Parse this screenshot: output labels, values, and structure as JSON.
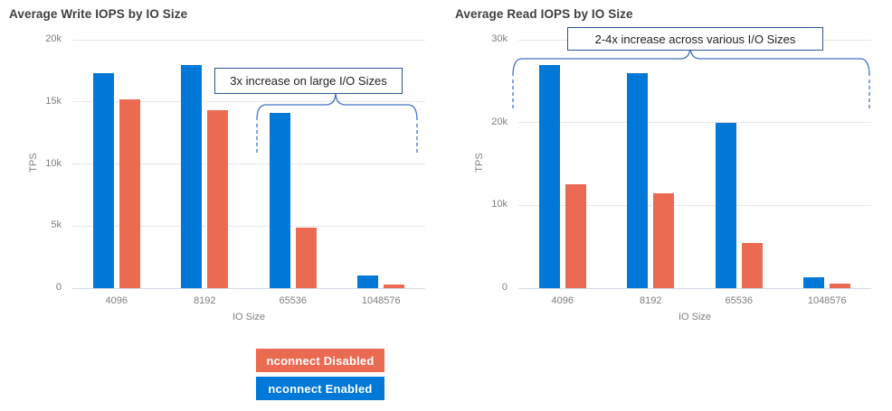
{
  "colors": {
    "enabled_blue": "#0078D7",
    "disabled_orange": "#EB6A52",
    "annotation_border": "#2F5496",
    "brace_blue": "#4472C4",
    "title_text": "#3F3F3F",
    "axis_text": "#7F7F7F",
    "gridline": "#E8E8E8",
    "axis_line": "#D3DCE9"
  },
  "legend": {
    "disabled_label": "nconnect Disabled",
    "enabled_label": "nconnect Enabled"
  },
  "chart_data": [
    {
      "type": "bar",
      "title": "Average Write IOPS by IO Size",
      "xlabel": "IO Size",
      "ylabel": "TPS",
      "categories": [
        "4096",
        "8192",
        "65536",
        "1048576"
      ],
      "series": [
        {
          "name": "nconnect Enabled",
          "color_key": "enabled_blue",
          "values": [
            17300,
            18000,
            14100,
            1000
          ]
        },
        {
          "name": "nconnect Disabled",
          "color_key": "disabled_orange",
          "values": [
            15200,
            14300,
            4900,
            300
          ]
        }
      ],
      "ylim": [
        0,
        20000
      ],
      "yticks": [
        {
          "v": 0,
          "label": "0"
        },
        {
          "v": 5000,
          "label": "5k"
        },
        {
          "v": 10000,
          "label": "10k"
        },
        {
          "v": 15000,
          "label": "15k"
        },
        {
          "v": 20000,
          "label": "20k"
        }
      ],
      "grid": "horizontal",
      "legend_position": "below-left-chart",
      "annotation": "3x increase on large I/O Sizes"
    },
    {
      "type": "bar",
      "title": "Average Read IOPS by IO Size",
      "xlabel": "IO Size",
      "ylabel": "TPS",
      "categories": [
        "4096",
        "8192",
        "65536",
        "1048576"
      ],
      "series": [
        {
          "name": "nconnect Enabled",
          "color_key": "enabled_blue",
          "values": [
            27000,
            26000,
            20000,
            1300
          ]
        },
        {
          "name": "nconnect Disabled",
          "color_key": "disabled_orange",
          "values": [
            12500,
            11500,
            5500,
            500
          ]
        }
      ],
      "ylim": [
        0,
        30000
      ],
      "yticks": [
        {
          "v": 0,
          "label": "0"
        },
        {
          "v": 10000,
          "label": "10k"
        },
        {
          "v": 20000,
          "label": "20k"
        },
        {
          "v": 30000,
          "label": "30k"
        }
      ],
      "grid": "horizontal",
      "legend_position": "shared",
      "annotation": "2-4x increase across various I/O Sizes"
    }
  ]
}
